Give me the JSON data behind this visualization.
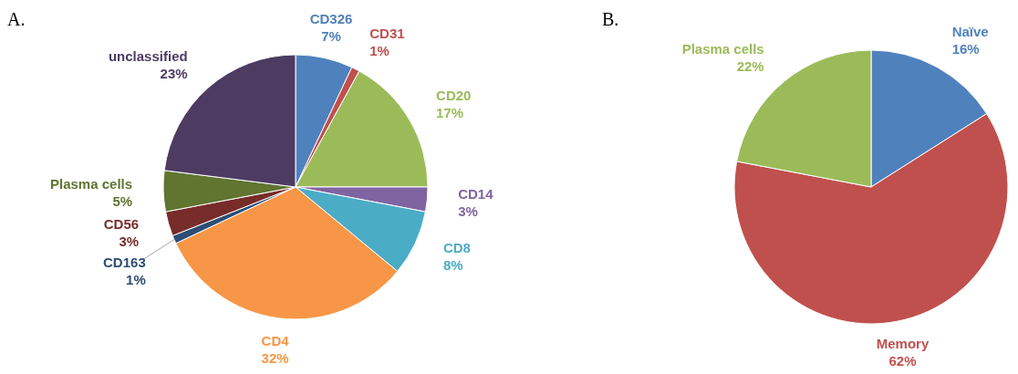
{
  "chart_data": [
    {
      "type": "pie",
      "title": "A.",
      "categories": [
        "CD326",
        "CD31",
        "CD20",
        "CD14",
        "CD8",
        "CD4",
        "CD163",
        "CD56",
        "Plasma cells",
        "unclassified"
      ],
      "values": [
        7,
        1,
        17,
        3,
        8,
        32,
        1,
        3,
        5,
        23
      ],
      "value_labels": [
        "7%",
        "1%",
        "17%",
        "3%",
        "8%",
        "32%",
        "1%",
        "3%",
        "5%",
        "23%"
      ],
      "colors": [
        "#4f81bd",
        "#c0504d",
        "#9bbb59",
        "#8064a2",
        "#4bacc6",
        "#f79646",
        "#2c4d75",
        "#772c2a",
        "#5f7530",
        "#4d3b62"
      ]
    },
    {
      "type": "pie",
      "title": "B.",
      "categories": [
        "Naïve",
        "Memory",
        "Plasma cells"
      ],
      "values": [
        16,
        62,
        22
      ],
      "value_labels": [
        "16%",
        "62%",
        "22%"
      ],
      "colors": [
        "#4f81bd",
        "#c0504d",
        "#9bbb59"
      ]
    }
  ]
}
